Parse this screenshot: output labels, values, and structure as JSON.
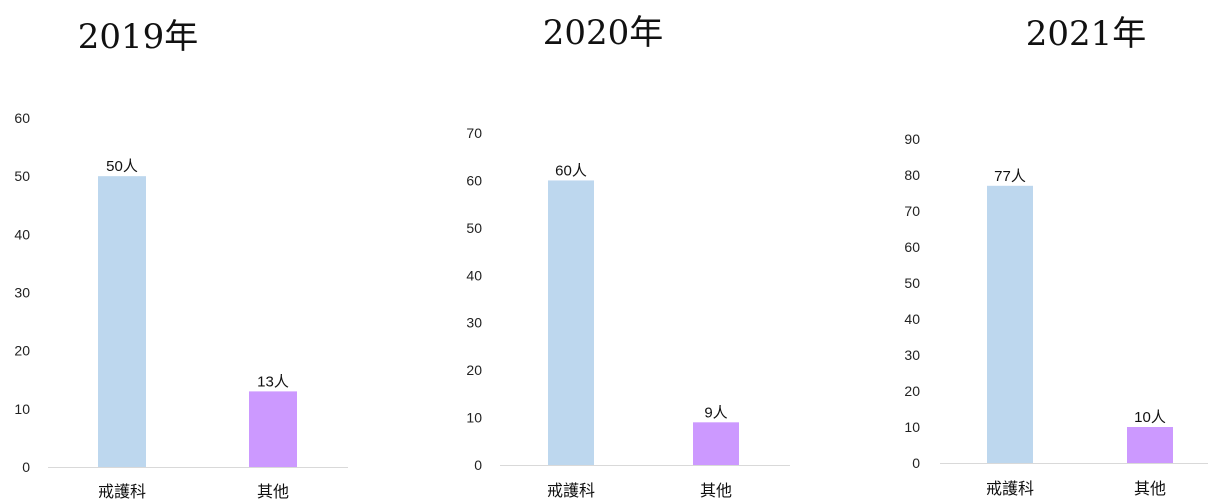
{
  "chart_data": [
    {
      "type": "bar",
      "title": "2019年",
      "categories": [
        "戒護科",
        "其他"
      ],
      "values": [
        50,
        13
      ],
      "data_labels": [
        "50人",
        "13人"
      ],
      "yticks": [
        0,
        10,
        20,
        30,
        40,
        50,
        60
      ],
      "ylim": [
        0,
        60
      ],
      "grid": false,
      "legend": "none",
      "colors": [
        "#BDD7EE",
        "#CC99FF"
      ]
    },
    {
      "type": "bar",
      "title": "2020年",
      "categories": [
        "戒護科",
        "其他"
      ],
      "values": [
        60,
        9
      ],
      "data_labels": [
        "60人",
        "9人"
      ],
      "yticks": [
        0,
        10,
        20,
        30,
        40,
        50,
        60,
        70
      ],
      "ylim": [
        0,
        70
      ],
      "grid": false,
      "legend": "none",
      "colors": [
        "#BDD7EE",
        "#CC99FF"
      ]
    },
    {
      "type": "bar",
      "title": "2021年",
      "categories": [
        "戒護科",
        "其他"
      ],
      "values": [
        77,
        10
      ],
      "data_labels": [
        "77人",
        "10人"
      ],
      "yticks": [
        0,
        10,
        20,
        30,
        40,
        50,
        60,
        70,
        80,
        90
      ],
      "ylim": [
        0,
        90
      ],
      "grid": false,
      "legend": "none",
      "colors": [
        "#BDD7EE",
        "#CC99FF"
      ]
    }
  ]
}
